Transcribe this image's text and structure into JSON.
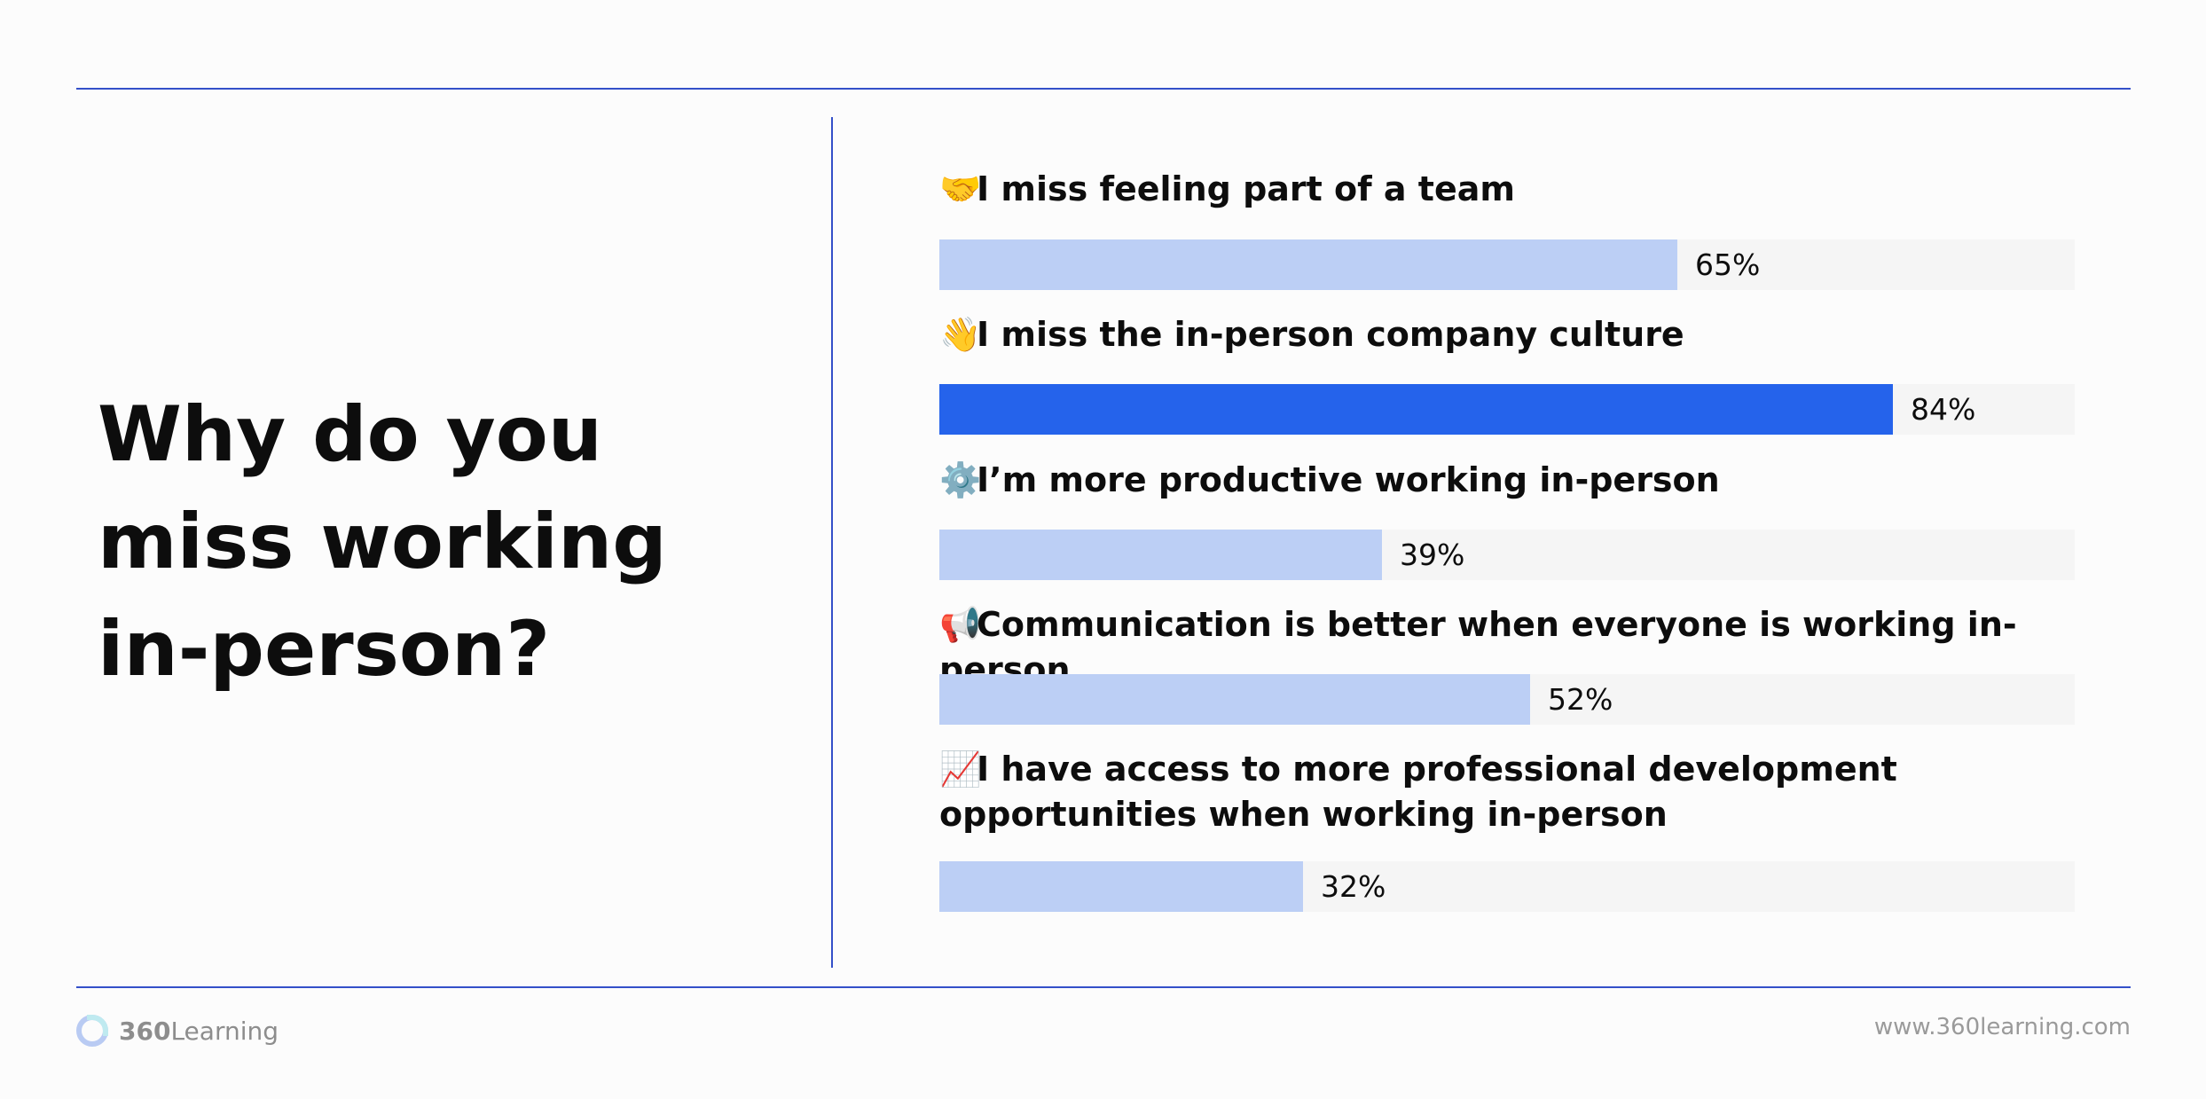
{
  "question": "Why do you miss working in-person?",
  "colors": {
    "rule": "#3450c9",
    "highlight_bar": "#2563eb",
    "bar": "#bccff5",
    "track": "#f5f5f5",
    "text": "#0d0d0d"
  },
  "chart_data": {
    "type": "bar",
    "orientation": "horizontal",
    "xlim": [
      0,
      100
    ],
    "highlighted_index": 1,
    "items": [
      {
        "icon": "handshake-icon",
        "emoji": "🤝",
        "label": "I miss feeling part of a team",
        "value": 65,
        "value_label": "65%"
      },
      {
        "icon": "waving-hand-icon",
        "emoji": "👋",
        "label": "I miss the in-person company culture",
        "value": 84,
        "value_label": "84%"
      },
      {
        "icon": "gear-icon",
        "emoji": "⚙️",
        "label": "I’m more productive working in-person",
        "value": 39,
        "value_label": "39%"
      },
      {
        "icon": "megaphone-icon",
        "emoji": "📢",
        "label": "Communication is better when everyone is working in-person",
        "value": 52,
        "value_label": "52%"
      },
      {
        "icon": "chart-increasing-icon",
        "emoji": "📈",
        "label": "I have access to more professional development opportunities when working in-person",
        "value": 32,
        "value_label": "32%"
      }
    ]
  },
  "footer": {
    "logo_strong": "360",
    "logo_rest": "Learning",
    "website": "www.360learning.com"
  }
}
